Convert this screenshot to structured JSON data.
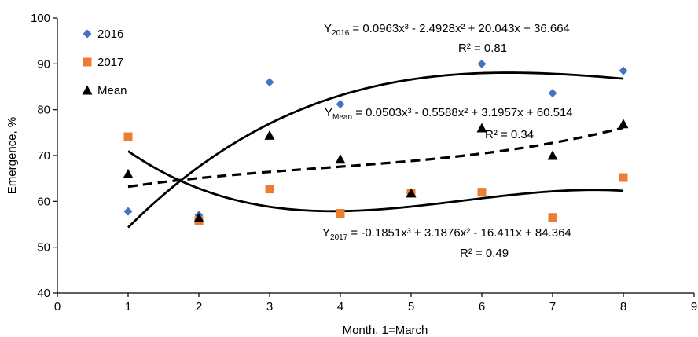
{
  "chart_data": {
    "type": "scatter",
    "title": "",
    "xlabel": "Month, 1=March",
    "ylabel": "Emergence, %",
    "xlim": [
      0,
      9
    ],
    "ylim": [
      40,
      100
    ],
    "x_ticks": [
      "0",
      "1",
      "2",
      "3",
      "4",
      "5",
      "6",
      "7",
      "8",
      "9"
    ],
    "y_ticks": [
      "40",
      "50",
      "60",
      "70",
      "80",
      "90",
      "100"
    ],
    "grid": false,
    "legend_position": "top-left",
    "series": [
      {
        "name": "2016",
        "marker": "diamond",
        "color": "#4472C4",
        "x": [
          1,
          2,
          3,
          4,
          5,
          6,
          7,
          8
        ],
        "y": [
          57.8,
          57.0,
          86.0,
          81.2,
          61.8,
          90.0,
          83.6,
          88.5
        ],
        "trendline": {
          "coef": [
            0.0963,
            -2.4928,
            20.043,
            36.664
          ],
          "style": "solid"
        }
      },
      {
        "name": "2017",
        "marker": "square",
        "color": "#ED7D31",
        "x": [
          1,
          2,
          3,
          4,
          5,
          6,
          7,
          8
        ],
        "y": [
          74.1,
          55.8,
          62.7,
          57.4,
          61.8,
          62.0,
          56.5,
          65.2
        ],
        "trendline": {
          "coef": [
            -0.1851,
            3.1876,
            -16.411,
            84.364
          ],
          "style": "solid"
        }
      },
      {
        "name": "Mean",
        "marker": "triangle",
        "color": "#000000",
        "x": [
          1,
          2,
          3,
          4,
          5,
          6,
          7,
          8
        ],
        "y": [
          66.0,
          56.4,
          74.4,
          69.2,
          61.8,
          76.0,
          70.0,
          76.9
        ],
        "trendline": {
          "coef": [
            0.0503,
            -0.5588,
            3.1957,
            60.514
          ],
          "style": "dashed"
        }
      }
    ],
    "annotations": [
      {
        "id": "2016",
        "sub": "2016",
        "equation": " = 0.0963x³ - 2.4928x² + 20.043x + 36.664",
        "r2": "R² = 0.81"
      },
      {
        "id": "Mean",
        "sub": "Mean",
        "equation": " = 0.0503x³ - 0.5588x² + 3.1957x + 60.514",
        "r2": "R² = 0.34"
      },
      {
        "id": "2017",
        "sub": "2017",
        "equation": " = -0.1851x³ + 3.1876x² - 16.411x + 84.364",
        "r2": "R² = 0.49"
      }
    ]
  }
}
